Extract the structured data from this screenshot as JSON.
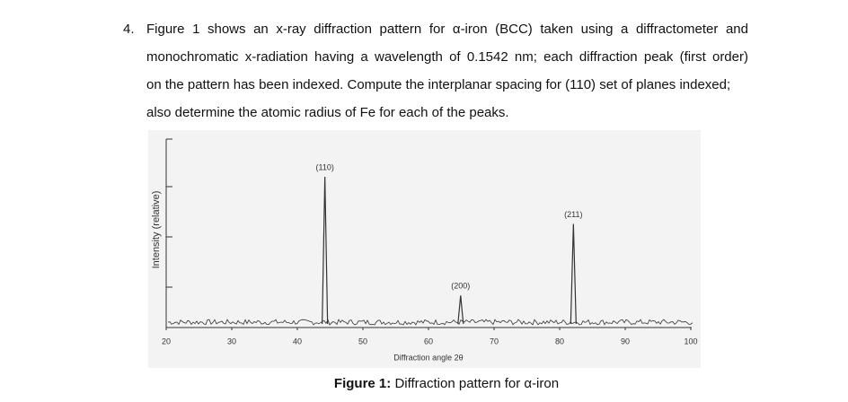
{
  "question": {
    "number": "4.",
    "lines": [
      "Figure 1 shows an x-ray diffraction pattern for α-iron (BCC) taken using a diffractometer and",
      "monochromatic x-radiation having a wavelength of 0.1542 nm; each diffraction peak (first order)",
      "on the pattern has been indexed. Compute the interplanar spacing for (110) set of planes indexed;",
      "also determine the atomic radius of Fe for each of the peaks."
    ]
  },
  "chart_data": {
    "type": "line",
    "x_label": "Diffraction angle 2θ",
    "y_label": "Intensity (relative)",
    "xlim": [
      20,
      100
    ],
    "xticks": [
      20,
      30,
      40,
      50,
      60,
      70,
      80,
      90,
      100
    ],
    "ylim": [
      0,
      100
    ],
    "peaks": {
      "labels": [
        "(110)",
        "(200)",
        "(211)"
      ],
      "x": [
        44.2,
        64.9,
        82.1
      ],
      "values": [
        80,
        17,
        55
      ]
    },
    "color": "#333333"
  },
  "caption": {
    "label": "Figure 1:",
    "text": "Diffraction pattern for α-iron"
  }
}
